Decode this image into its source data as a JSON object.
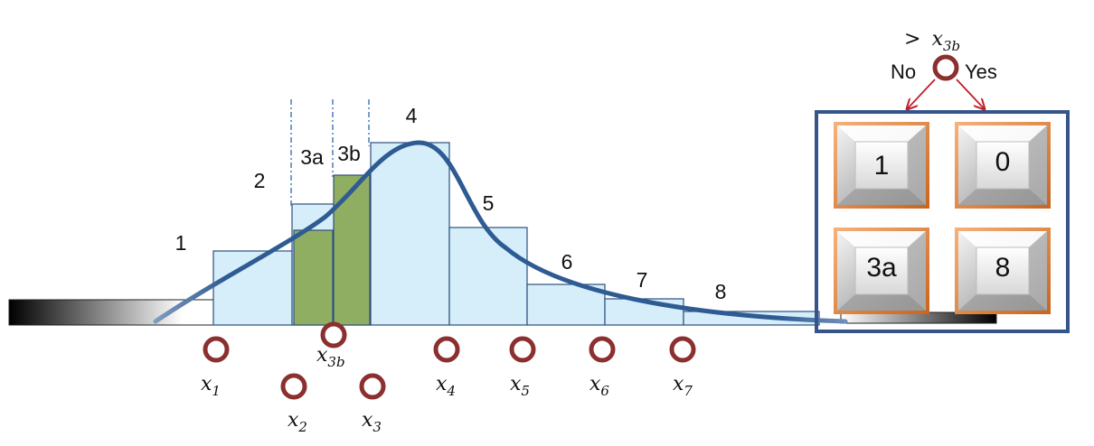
{
  "bins": [
    {
      "label": "1"
    },
    {
      "label": "2"
    },
    {
      "label": "3a"
    },
    {
      "label": "3b"
    },
    {
      "label": "4"
    },
    {
      "label": "5"
    },
    {
      "label": "6"
    },
    {
      "label": "7"
    },
    {
      "label": "8"
    }
  ],
  "markers": [
    {
      "name": "x",
      "sub": "1"
    },
    {
      "name": "x",
      "sub": "2"
    },
    {
      "name": "x",
      "sub": "3b"
    },
    {
      "name": "x",
      "sub": "3"
    },
    {
      "name": "x",
      "sub": "4"
    },
    {
      "name": "x",
      "sub": "5"
    },
    {
      "name": "x",
      "sub": "6"
    },
    {
      "name": "x",
      "sub": "7"
    }
  ],
  "decision": {
    "condition_prefix": ">",
    "condition_var": "x",
    "condition_sub": "3b",
    "no_label": "No",
    "yes_label": "Yes"
  },
  "keys": [
    {
      "label": "1"
    },
    {
      "label": "0"
    },
    {
      "label": "3a"
    },
    {
      "label": "8"
    }
  ],
  "colors": {
    "curve": "#2f5b93",
    "bin_fill": "#d5eefa",
    "bin_stroke": "#2f4f7f",
    "highlight_fill": "#8fae62",
    "marker": "#8b2f2f",
    "panel_border": "#34548a",
    "key_orange": "#e8873a",
    "arrow": "#c0202a"
  }
}
